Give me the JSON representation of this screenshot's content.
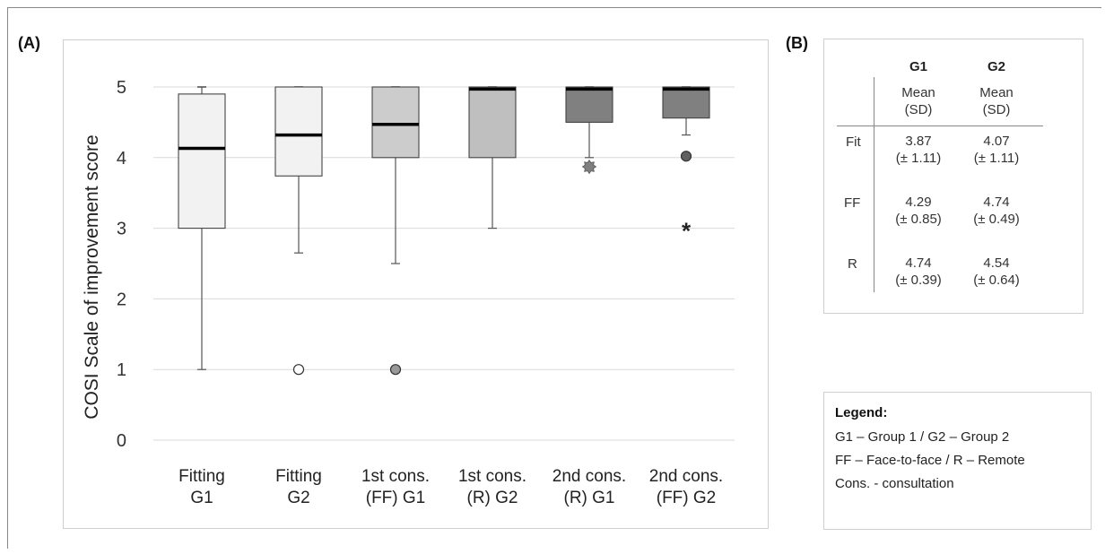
{
  "panel_a_label": "(A)",
  "panel_b_label": "(B)",
  "chart_data": {
    "type": "box",
    "ylabel": "COSI Scale of improvement score",
    "ylim": [
      0,
      5
    ],
    "yticks": [
      0,
      1,
      2,
      3,
      4,
      5
    ],
    "grid": true,
    "boxes": [
      {
        "label_line1": "Fitting",
        "label_line2": "G1",
        "whisker_low": 1,
        "q1": 3,
        "median": 4.13,
        "q3": 4.9,
        "whisker_high": 5,
        "fill": "#f2f2f2",
        "outliers": []
      },
      {
        "label_line1": "Fitting",
        "label_line2": "G2",
        "whisker_low": 2.65,
        "q1": 3.74,
        "median": 4.32,
        "q3": 5,
        "whisker_high": 5,
        "fill": "#f2f2f2",
        "outliers": [
          {
            "value": 1,
            "marker": "circle",
            "fill": "#ffffff"
          }
        ]
      },
      {
        "label_line1": "1st cons.",
        "label_line2": "(FF) G1",
        "whisker_low": 2.5,
        "q1": 4,
        "median": 4.47,
        "q3": 5,
        "whisker_high": 5,
        "fill": "#cccccc",
        "outliers": [
          {
            "value": 1,
            "marker": "circle",
            "fill": "#999999"
          }
        ]
      },
      {
        "label_line1": "1st cons.",
        "label_line2": "(R) G2",
        "whisker_low": 3,
        "q1": 4,
        "median": 4.97,
        "q3": 5,
        "whisker_high": 5,
        "fill": "#bfbfbf",
        "outliers": []
      },
      {
        "label_line1": "2nd cons.",
        "label_line2": "(R) G1",
        "whisker_low": 4,
        "q1": 4.5,
        "median": 4.97,
        "q3": 5,
        "whisker_high": 5,
        "fill": "#808080",
        "outliers": [
          {
            "value": 3.87,
            "marker": "star-burst",
            "fill": "#808080"
          }
        ]
      },
      {
        "label_line1": "2nd cons.",
        "label_line2": "(FF) G2",
        "whisker_low": 4.32,
        "q1": 4.56,
        "median": 4.97,
        "q3": 5,
        "whisker_high": 5,
        "fill": "#808080",
        "outliers": [
          {
            "value": 4.02,
            "marker": "circle",
            "fill": "#606060"
          },
          {
            "value": 3,
            "marker": "asterisk",
            "fill": "#222222"
          }
        ]
      }
    ]
  },
  "stats_table": {
    "columns": [
      {
        "group": "G1",
        "sub1": "Mean",
        "sub2": "(SD)"
      },
      {
        "group": "G2",
        "sub1": "Mean",
        "sub2": "(SD)"
      }
    ],
    "rows": [
      {
        "label": "Fit",
        "g1_mean": "3.87",
        "g1_sd": "(± 1.11)",
        "g2_mean": "4.07",
        "g2_sd": "(± 1.11)"
      },
      {
        "label": "FF",
        "g1_mean": "4.29",
        "g1_sd": "(± 0.85)",
        "g2_mean": "4.74",
        "g2_sd": "(± 0.49)"
      },
      {
        "label": "R",
        "g1_mean": "4.74",
        "g1_sd": "(± 0.39)",
        "g2_mean": "4.54",
        "g2_sd": "(± 0.64)"
      }
    ]
  },
  "legend": {
    "title": "Legend:",
    "lines": [
      "G1 – Group 1 / G2 – Group 2",
      "FF – Face-to-face / R – Remote",
      "Cons. - consultation"
    ]
  }
}
